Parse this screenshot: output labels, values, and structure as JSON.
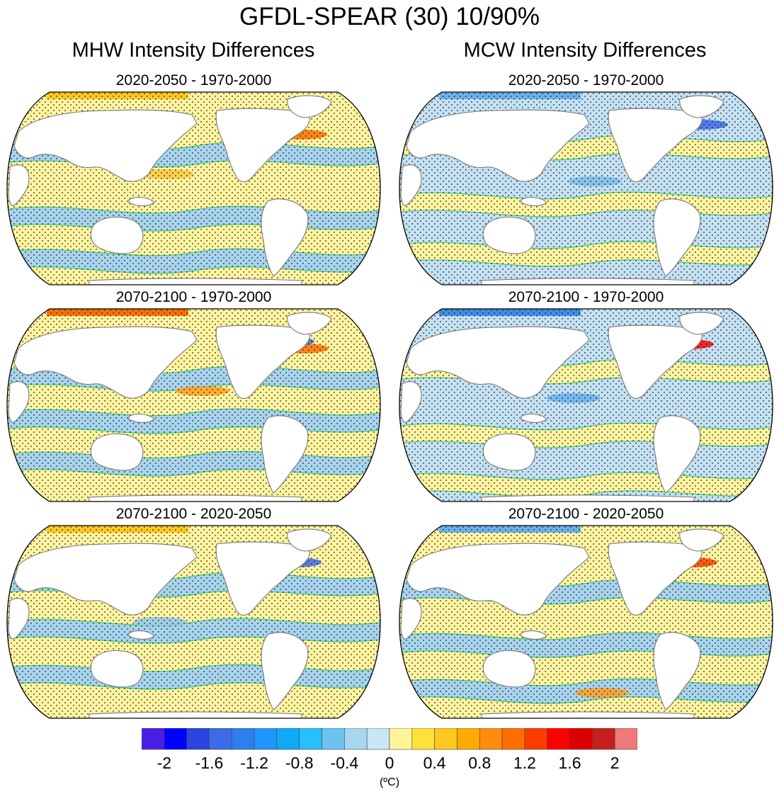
{
  "title": "GFDL-SPEAR (30) 10/90%",
  "columns": [
    "MHW Intensity Differences",
    "MCW Intensity Differences"
  ],
  "panels": [
    {
      "title": "2020-2050 - 1970-2000",
      "variant": "mhw1"
    },
    {
      "title": "2020-2050 - 1970-2000",
      "variant": "mcw1"
    },
    {
      "title": "2070-2100 - 1970-2000",
      "variant": "mhw2"
    },
    {
      "title": "2070-2100 - 1970-2000",
      "variant": "mcw2"
    },
    {
      "title": "2070-2100 - 2020-2050",
      "variant": "mhw3"
    },
    {
      "title": "2070-2100 - 2020-2050",
      "variant": "mcw3"
    }
  ],
  "colorbar": {
    "colors": [
      "#4b1ee6",
      "#0000ff",
      "#2a44e0",
      "#3d6ae6",
      "#2d7ff0",
      "#1e96ff",
      "#0faaf5",
      "#28c0fa",
      "#6cc3f0",
      "#a6d6f0",
      "#c8e6f5",
      "#fff598",
      "#ffe13c",
      "#ffc81e",
      "#ffaa00",
      "#ff8c0f",
      "#ff6e00",
      "#ff3c00",
      "#ff0000",
      "#dc0000",
      "#c81e1e",
      "#f07878"
    ],
    "tick_labels": [
      "-2",
      "-1.6",
      "-1.2",
      "-0.8",
      "-0.4",
      "0",
      "0.4",
      "0.8",
      "1.2",
      "1.6",
      "2"
    ],
    "units": "(ºC)"
  }
}
